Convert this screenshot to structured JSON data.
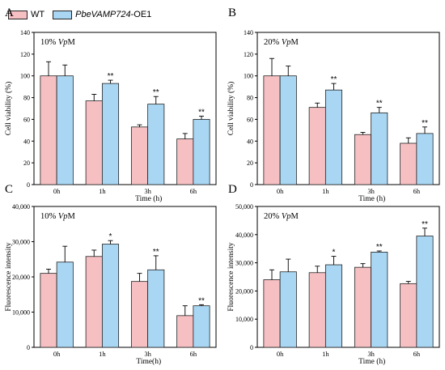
{
  "legend": {
    "items": [
      {
        "label": "WT",
        "color": "#f6c0c3"
      },
      {
        "label_italic": "PbeVAMP724",
        "label_rest": "-OE1",
        "color": "#a9d7f3"
      }
    ]
  },
  "colors": {
    "wt": "#f6c0c3",
    "oe": "#a9d7f3",
    "stroke": "#222222"
  },
  "chart_data": [
    {
      "panel": "A",
      "type": "bar",
      "annotation_prefix": "10% ",
      "annotation_italic": "Vp",
      "annotation_suffix": "M",
      "categories": [
        "0h",
        "1h",
        "3h",
        "6h"
      ],
      "xlabel": "Time (h)",
      "ylabel": "Cell viability (%)",
      "ylim": [
        0,
        140
      ],
      "yticks": [
        0,
        20,
        40,
        60,
        80,
        100,
        120,
        140
      ],
      "ytick_labels": [
        "0",
        "20",
        "40",
        "60",
        "80",
        "100",
        "120",
        "140"
      ],
      "series": [
        {
          "values": [
            100,
            77,
            53,
            42
          ],
          "errors": [
            13,
            6,
            2,
            5
          ]
        },
        {
          "values": [
            100,
            93,
            74,
            60
          ],
          "errors": [
            10,
            3,
            7,
            3
          ]
        }
      ],
      "significance": [
        "",
        "**",
        "**",
        "**"
      ]
    },
    {
      "panel": "B",
      "type": "bar",
      "annotation_prefix": "20% ",
      "annotation_italic": "Vp",
      "annotation_suffix": "M",
      "categories": [
        "0h",
        "1h",
        "3h",
        "6h"
      ],
      "xlabel": "Time (h)",
      "ylabel": "Cell viability (%)",
      "ylim": [
        0,
        140
      ],
      "yticks": [
        0,
        20,
        40,
        60,
        80,
        100,
        120,
        140
      ],
      "ytick_labels": [
        "0",
        "20",
        "40",
        "60",
        "80",
        "100",
        "120",
        "140"
      ],
      "series": [
        {
          "values": [
            100,
            71,
            46,
            38
          ],
          "errors": [
            16,
            4,
            2,
            5
          ]
        },
        {
          "values": [
            100,
            87,
            66,
            47
          ],
          "errors": [
            9,
            6,
            5,
            6
          ]
        }
      ],
      "significance": [
        "",
        "**",
        "**",
        "**"
      ]
    },
    {
      "panel": "C",
      "type": "bar",
      "annotation_prefix": "10% ",
      "annotation_italic": "Vp",
      "annotation_suffix": "M",
      "categories": [
        "0h",
        "1h",
        "3h",
        "6h"
      ],
      "xlabel": "Time(h)",
      "ylabel": "Fluorescence intensity",
      "ylim": [
        0,
        40000
      ],
      "yticks": [
        0,
        10000,
        20000,
        30000,
        40000
      ],
      "ytick_labels": [
        "0",
        "10,000",
        "20,000",
        "30,000",
        "40,000"
      ],
      "series": [
        {
          "values": [
            21000,
            25800,
            18700,
            9000
          ],
          "errors": [
            1200,
            1800,
            2300,
            2800
          ]
        },
        {
          "values": [
            24200,
            29300,
            22000,
            11800
          ],
          "errors": [
            4500,
            1000,
            4000,
            300
          ]
        }
      ],
      "significance": [
        "",
        "*",
        "**",
        "**"
      ]
    },
    {
      "panel": "D",
      "type": "bar",
      "annotation_prefix": "20% ",
      "annotation_italic": "Vp",
      "annotation_suffix": "M",
      "categories": [
        "0h",
        "1h",
        "3h",
        "6h"
      ],
      "xlabel": "Time (h)",
      "ylabel": "Fluorescence intensity",
      "ylim": [
        0,
        50000
      ],
      "yticks": [
        0,
        10000,
        20000,
        30000,
        40000,
        50000
      ],
      "ytick_labels": [
        "0",
        "10,000",
        "20,000",
        "30,000",
        "40,000",
        "50,000"
      ],
      "series": [
        {
          "values": [
            24000,
            26500,
            28400,
            22600
          ],
          "errors": [
            3500,
            2300,
            1300,
            800
          ]
        },
        {
          "values": [
            26800,
            29300,
            33800,
            39500
          ],
          "errors": [
            4500,
            3000,
            400,
            2800
          ]
        }
      ],
      "significance": [
        "",
        "*",
        "**",
        "**"
      ]
    }
  ]
}
